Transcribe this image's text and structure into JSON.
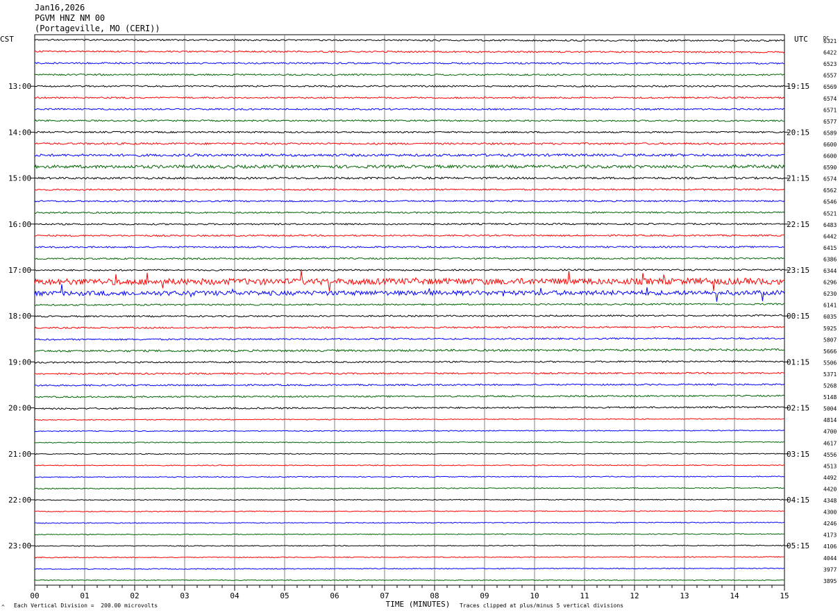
{
  "header": {
    "date": "Jan16,2026",
    "station": "PGVM HNZ NM 00",
    "location": "(Portageville, MO (CERI))"
  },
  "footer": {
    "scale_note": "Each Vertical Division =  200.00 microvolts",
    "clip_note": "Traces clipped at plus/minus 5 vertical divisions",
    "corner_mark": "^"
  },
  "chart_data": {
    "type": "line",
    "chart_subtype": "helicorder",
    "left_axis_title": "CST",
    "right_axis_title": "UTC",
    "dc_title": "DC",
    "xlabel": "TIME (MINUTES)",
    "xlim": [
      0,
      15
    ],
    "x_ticks": [
      "00",
      "01",
      "02",
      "03",
      "04",
      "05",
      "06",
      "07",
      "08",
      "09",
      "10",
      "11",
      "12",
      "13",
      "14",
      "15"
    ],
    "minor_ticks_per_minute": 4,
    "grid": "vertical lines every minute",
    "trace_colors": [
      "#000000",
      "#ff0000",
      "#0000ff",
      "#006400"
    ],
    "rows_per_hour": 4,
    "left_hour_labels": [
      "13:00",
      "14:00",
      "15:00",
      "16:00",
      "17:00",
      "18:00",
      "19:00",
      "20:00",
      "21:00",
      "22:00",
      "23:00"
    ],
    "right_hour_labels": [
      "19:15",
      "20:15",
      "21:15",
      "22:15",
      "23:15",
      "00:15",
      "01:15",
      "02:15",
      "03:15",
      "04:15",
      "05:15"
    ],
    "first_labeled_row": 4,
    "dc_offsets": [
      6321,
      6422,
      6523,
      6557,
      6569,
      6574,
      6571,
      6577,
      6589,
      6600,
      6600,
      6590,
      6574,
      6562,
      6546,
      6521,
      6483,
      6442,
      6415,
      6386,
      6344,
      6296,
      6230,
      6141,
      6035,
      5925,
      5807,
      5666,
      5506,
      5371,
      5268,
      5148,
      5004,
      4814,
      4700,
      4617,
      4556,
      4513,
      4492,
      4420,
      4348,
      4300,
      4246,
      4173,
      4106,
      4044,
      3977,
      3895
    ],
    "noise_level": [
      1,
      1,
      1,
      1,
      1,
      1,
      1,
      1,
      1,
      1.2,
      1.6,
      2,
      1.3,
      1,
      1,
      1,
      1,
      1,
      1,
      1,
      1,
      4,
      3,
      1,
      1,
      1,
      1,
      1.3,
      1,
      1,
      1,
      1,
      1,
      0.6,
      0.6,
      0.6,
      0.6,
      0.6,
      0.6,
      0.6,
      0.6,
      0.6,
      0.6,
      0.6,
      0.6,
      0.6,
      0.6,
      0.6
    ]
  }
}
